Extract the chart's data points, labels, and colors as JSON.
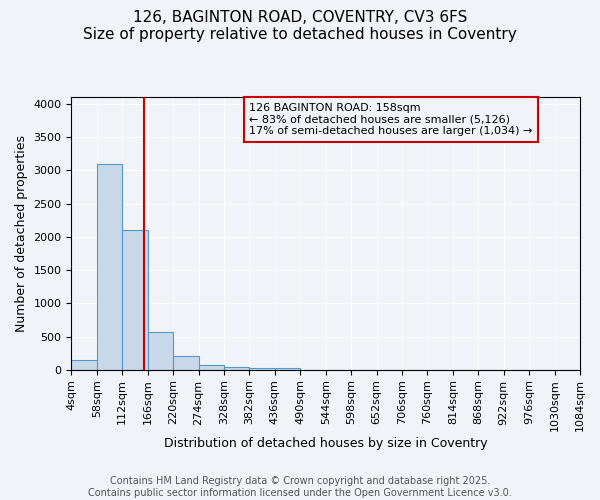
{
  "title_line1": "126, BAGINTON ROAD, COVENTRY, CV3 6FS",
  "title_line2": "Size of property relative to detached houses in Coventry",
  "xlabel": "Distribution of detached houses by size in Coventry",
  "ylabel": "Number of detached properties",
  "bin_labels": [
    "4sqm",
    "58sqm",
    "112sqm",
    "166sqm",
    "220sqm",
    "274sqm",
    "328sqm",
    "382sqm",
    "436sqm",
    "490sqm",
    "544sqm",
    "598sqm",
    "652sqm",
    "706sqm",
    "760sqm",
    "814sqm",
    "868sqm",
    "922sqm",
    "976sqm",
    "1030sqm",
    "1084sqm"
  ],
  "bar_values": [
    150,
    3100,
    2100,
    570,
    210,
    70,
    45,
    30,
    30,
    0,
    0,
    0,
    0,
    0,
    0,
    0,
    0,
    0,
    0,
    0
  ],
  "bar_color": "#c8d8e8",
  "bar_edge_color": "#5599cc",
  "property_line_x": 2.852,
  "property_line_color": "#cc0000",
  "annotation_text": "126 BAGINTON ROAD: 158sqm\n← 83% of detached houses are smaller (5,126)\n17% of semi-detached houses are larger (1,034) →",
  "annotation_box_color": "#cc0000",
  "ylim": [
    0,
    4100
  ],
  "yticks": [
    0,
    500,
    1000,
    1500,
    2000,
    2500,
    3000,
    3500,
    4000
  ],
  "footnote1": "Contains HM Land Registry data © Crown copyright and database right 2025.",
  "footnote2": "Contains public sector information licensed under the Open Government Licence v3.0.",
  "bg_color": "#f0f4f8",
  "grid_color": "#ffffff",
  "title_fontsize": 11,
  "axis_label_fontsize": 9,
  "tick_fontsize": 8,
  "annotation_fontsize": 8,
  "footnote_fontsize": 7
}
